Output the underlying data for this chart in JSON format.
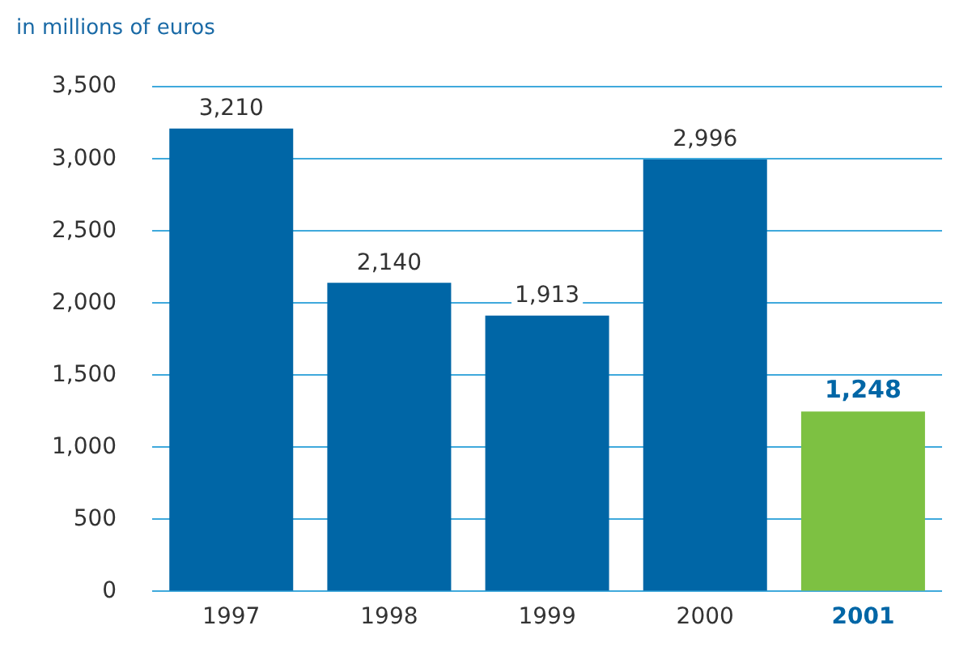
{
  "chart_data": {
    "type": "bar",
    "ylabel": "in millions of euros",
    "categories": [
      "1997",
      "1998",
      "1999",
      "2000",
      "2001"
    ],
    "values": [
      3210,
      2140,
      1913,
      2996,
      1248
    ],
    "value_labels": [
      "3,210",
      "2,140",
      "1,913",
      "2,996",
      "1,248"
    ],
    "colors": [
      "#0066a6",
      "#0066a6",
      "#0066a6",
      "#0066a6",
      "#7dc142"
    ],
    "ylim": [
      0,
      3500
    ],
    "yticks": [
      0,
      500,
      {
        "value": 1000,
        "label": "1,000"
      },
      {
        "value": 1500,
        "label": "1,500"
      },
      {
        "value": 2000,
        "label": "2,000"
      },
      {
        "value": 2500,
        "label": "2,500"
      },
      {
        "value": 3000,
        "label": "3,000"
      },
      {
        "value": 3500,
        "label": "3,500"
      }
    ],
    "grid": "y",
    "legend": false
  }
}
